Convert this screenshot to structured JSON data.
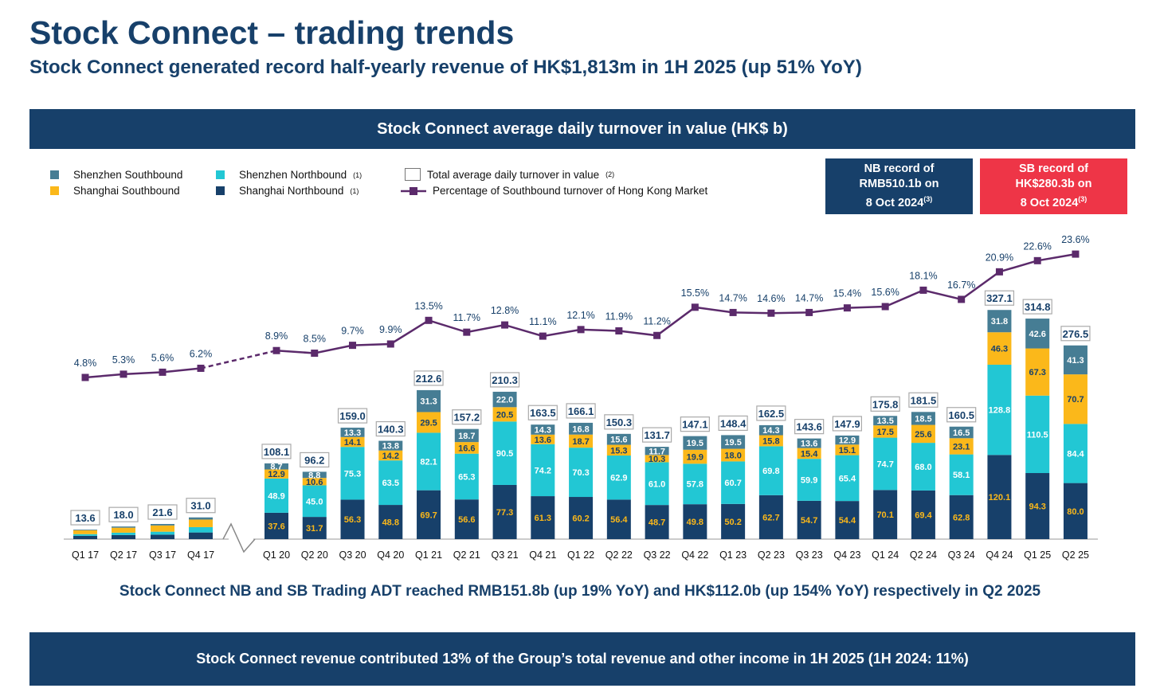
{
  "header": {
    "title": "Stock Connect – trading trends",
    "subtitle": "Stock Connect generated record half-yearly revenue of HK$1,813m in 1H 2025 (up 51% YoY)"
  },
  "band_top": "Stock Connect average daily turnover in value (HK$ b)",
  "legend": {
    "sz_sb": "Shenzhen Southbound",
    "sh_sb": "Shanghai Southbound",
    "sz_nb": "Shenzhen Northbound",
    "sh_nb": "Shanghai Northbound",
    "note1": "(1)",
    "total": "Total average daily turnover in value",
    "note2": "(2)",
    "pct": "Percentage of Southbound turnover of Hong Kong Market"
  },
  "records": {
    "nb": {
      "l1": "NB record of",
      "l2": "RMB510.1b on",
      "l3": "8 Oct 2024",
      "note": "(3)"
    },
    "sb": {
      "l1": "SB record of",
      "l2": "HK$280.3b on",
      "l3": "8 Oct 2024",
      "note": "(3)"
    }
  },
  "colors": {
    "navy": "#17406a",
    "sh_nb": "#17406a",
    "sz_nb": "#22c7d4",
    "sh_sb": "#fbb81a",
    "sz_sb": "#467d94",
    "line": "#5b2a6b",
    "red": "#ee3547"
  },
  "chart_data": {
    "type": "bar",
    "title": "Stock Connect average daily turnover in value (HK$ b)",
    "categories": [
      "Q1 17",
      "Q2 17",
      "Q3 17",
      "Q4 17",
      "Q1 20",
      "Q2 20",
      "Q3 20",
      "Q4 20",
      "Q1 21",
      "Q2 21",
      "Q3 21",
      "Q4 21",
      "Q1 22",
      "Q2 22",
      "Q3 22",
      "Q4 22",
      "Q1 23",
      "Q2 23",
      "Q3 23",
      "Q4 23",
      "Q1 24",
      "Q2 24",
      "Q3 24",
      "Q4 24",
      "Q1 25",
      "Q2 25"
    ],
    "series": [
      {
        "name": "Shanghai Northbound",
        "values": [
          4.7,
          5.9,
          6.4,
          9.5,
          37.6,
          31.7,
          56.3,
          48.8,
          69.7,
          56.6,
          77.3,
          61.3,
          60.2,
          56.4,
          48.7,
          49.8,
          50.2,
          62.7,
          54.7,
          54.4,
          70.1,
          69.4,
          62.8,
          120.1,
          94.3,
          80.0
        ],
        "labeled_from": 4
      },
      {
        "name": "Shenzhen Northbound",
        "values": [
          2.4,
          3.3,
          4.2,
          7.6,
          48.9,
          45.0,
          75.3,
          63.5,
          82.1,
          65.3,
          90.5,
          74.2,
          70.3,
          62.9,
          61.0,
          57.8,
          60.7,
          69.8,
          59.9,
          65.4,
          74.7,
          68.0,
          58.1,
          128.8,
          110.5,
          84.4
        ],
        "labeled_from": 4
      },
      {
        "name": "Shanghai Southbound",
        "values": [
          5.6,
          7.1,
          8.9,
          10.8,
          12.9,
          10.6,
          14.1,
          14.2,
          29.5,
          16.6,
          20.5,
          13.6,
          18.7,
          15.3,
          10.3,
          19.9,
          18.0,
          15.8,
          15.4,
          15.1,
          17.5,
          25.6,
          23.1,
          46.3,
          67.3,
          70.7
        ],
        "labeled_from": 4
      },
      {
        "name": "Shenzhen Southbound",
        "values": [
          0.9,
          1.7,
          2.1,
          3.1,
          8.7,
          8.8,
          13.3,
          13.8,
          31.3,
          18.7,
          22.0,
          14.3,
          16.8,
          15.6,
          11.7,
          19.5,
          19.5,
          14.3,
          13.6,
          12.9,
          13.5,
          18.5,
          16.5,
          31.8,
          42.6,
          41.3
        ],
        "labeled_from": 4
      }
    ],
    "totals": [
      13.6,
      18.0,
      21.6,
      31.0,
      108.1,
      96.2,
      159.0,
      140.3,
      212.6,
      157.2,
      210.3,
      163.5,
      166.1,
      150.3,
      131.7,
      147.1,
      148.4,
      162.5,
      143.6,
      147.9,
      175.8,
      181.5,
      160.5,
      327.1,
      314.8,
      276.5
    ],
    "line": {
      "name": "Percentage of Southbound turnover of Hong Kong Market",
      "values": [
        4.8,
        5.3,
        5.6,
        6.2,
        8.9,
        8.5,
        9.7,
        9.9,
        13.5,
        11.7,
        12.8,
        11.1,
        12.1,
        11.9,
        11.2,
        15.5,
        14.7,
        14.6,
        14.7,
        15.4,
        15.6,
        18.1,
        16.7,
        20.9,
        22.6,
        23.6
      ],
      "unit": "%"
    },
    "axis_break": "between Q4 17 and Q1 20",
    "legend_position": "top-left"
  },
  "note": "Stock Connect NB and SB Trading ADT reached RMB151.8b (up 19% YoY) and HK$112.0b (up 154% YoY) respectively in Q2 2025",
  "band_bottom": "Stock Connect revenue contributed 13% of the Group’s total revenue and other income in 1H 2025 (1H 2024: 11%)"
}
